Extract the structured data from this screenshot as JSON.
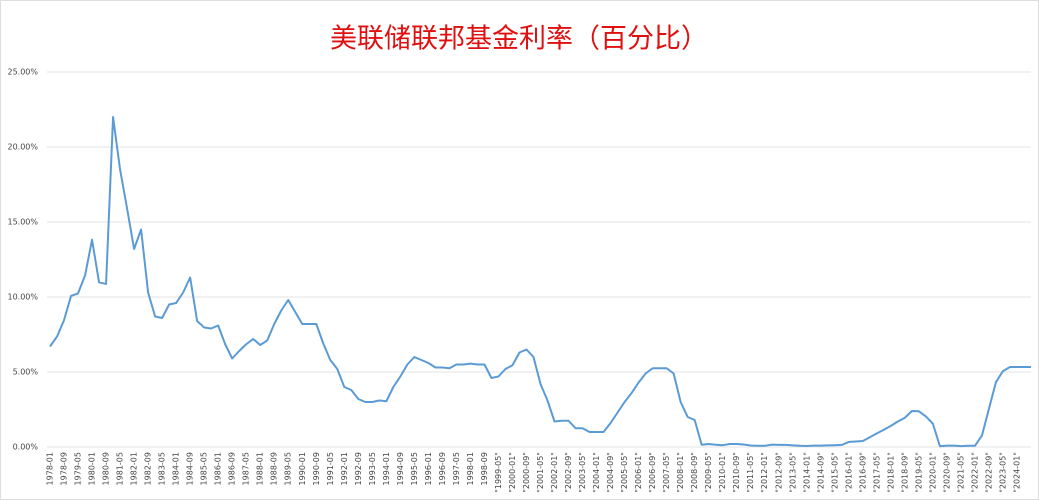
{
  "chart_data": {
    "type": "line",
    "title": "美联储联邦基金利率（百分比）",
    "title_color": "#e01010",
    "color": "#5b9bd5",
    "grid": true,
    "ylim": [
      0,
      25
    ],
    "yticks": [
      {
        "value": 0,
        "label": "0.00%"
      },
      {
        "value": 5,
        "label": "5.00%"
      },
      {
        "value": 10,
        "label": "10.00%"
      },
      {
        "value": 15,
        "label": "15.00%"
      },
      {
        "value": 20,
        "label": "20.00%"
      },
      {
        "value": 25,
        "label": "25.00%"
      }
    ],
    "categories": [
      "1978-01",
      null,
      "1978-09",
      null,
      "1979-05",
      null,
      "1980-01",
      null,
      "1980-09",
      null,
      "1981-05",
      null,
      "1982-01",
      null,
      "1982-09",
      null,
      "1983-05",
      null,
      "1984-01",
      null,
      "1984-09",
      null,
      "1985-05",
      null,
      "1986-01",
      null,
      "1986-09",
      null,
      "1987-05",
      null,
      "1988-01",
      null,
      "1988-09",
      null,
      "1989-05",
      null,
      "1990-01",
      null,
      "1990-09",
      null,
      "1991-05",
      null,
      "1992-01",
      null,
      "1992-09",
      null,
      "1993-05",
      null,
      "1994-01",
      null,
      "1994-09",
      null,
      "1995-05",
      null,
      "1996-01",
      null,
      "1996-09",
      null,
      "1997-05",
      null,
      "1998-01",
      null,
      "1998-09",
      null,
      "\"1999-05\"",
      null,
      "\"2000-01\"",
      null,
      "\"2000-09\"",
      null,
      "\"2001-05\"",
      null,
      "\"2002-01\"",
      null,
      "\"2002-09\"",
      null,
      "\"2003-05\"",
      null,
      "\"2004-01\"",
      null,
      "\"2004-09\"",
      null,
      "\"2005-05\"",
      null,
      "\"2006-01\"",
      null,
      "\"2006-09\"",
      null,
      "\"2007-05\"",
      null,
      "\"2008-01\"",
      null,
      "\"2008-09\"",
      null,
      "\"2009-05\"",
      null,
      "\"2010-01\"",
      null,
      "\"2010-09\"",
      null,
      "\"2011-05\"",
      null,
      "\"2012-01\"",
      null,
      "\"2012-09\"",
      null,
      "\"2013-05\"",
      null,
      "\"2014-01\"",
      null,
      "\"2014-09\"",
      null,
      "\"2015-05\"",
      null,
      "\"2016-01\"",
      null,
      "\"2016-09\"",
      null,
      "\"2017-05\"",
      null,
      "\"2018-01\"",
      null,
      "\"2018-09\"",
      null,
      "\"2019-05\"",
      null,
      "\"2020-01\"",
      null,
      "\"2020-09\"",
      null,
      "\"2021-05\"",
      null,
      "\"2022-01\"",
      null,
      "\"2022-09\"",
      null,
      "\"2023-05\"",
      null,
      "\"2024-01\"",
      null,
      null
    ],
    "values": [
      6.7,
      7.36,
      8.45,
      10.07,
      10.24,
      11.43,
      13.82,
      10.98,
      10.87,
      22.0,
      18.5,
      15.9,
      13.2,
      14.5,
      10.3,
      8.7,
      8.6,
      9.5,
      9.6,
      10.3,
      11.3,
      8.4,
      7.97,
      7.9,
      8.1,
      6.85,
      5.9,
      6.4,
      6.85,
      7.2,
      6.8,
      7.1,
      8.2,
      9.1,
      9.8,
      9.0,
      8.2,
      8.2,
      8.2,
      6.9,
      5.8,
      5.2,
      4.0,
      3.8,
      3.2,
      3.0,
      3.0,
      3.1,
      3.05,
      4.0,
      4.7,
      5.5,
      6.0,
      5.8,
      5.6,
      5.3,
      5.3,
      5.25,
      5.5,
      5.5,
      5.56,
      5.5,
      5.5,
      4.6,
      4.7,
      5.2,
      5.45,
      6.3,
      6.5,
      6.0,
      4.2,
      3.1,
      1.7,
      1.75,
      1.75,
      1.25,
      1.25,
      1.0,
      1.0,
      1.0,
      1.6,
      2.3,
      3.0,
      3.6,
      4.3,
      4.9,
      5.25,
      5.25,
      5.25,
      4.9,
      3.0,
      2.0,
      1.8,
      0.15,
      0.2,
      0.15,
      0.12,
      0.2,
      0.2,
      0.17,
      0.1,
      0.08,
      0.08,
      0.16,
      0.14,
      0.14,
      0.11,
      0.08,
      0.07,
      0.09,
      0.09,
      0.11,
      0.12,
      0.14,
      0.34,
      0.37,
      0.4,
      0.65,
      0.91,
      1.15,
      1.41,
      1.7,
      1.95,
      2.4,
      2.38,
      2.04,
      1.55,
      0.05,
      0.09,
      0.09,
      0.06,
      0.08,
      0.08,
      0.77,
      2.56,
      4.33,
      5.06,
      5.33,
      5.33,
      5.33,
      5.33
    ]
  }
}
